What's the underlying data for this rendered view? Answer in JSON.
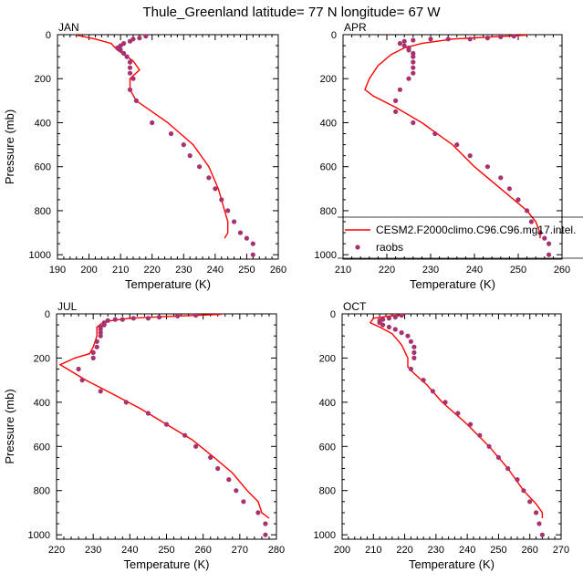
{
  "title": "Thule_Greenland  latitude= 77 N longitude= 67 W",
  "chart_data": [
    {
      "type": "line",
      "panel": "JAN",
      "xlabel": "Temperature (K)",
      "ylabel": "Pressure (mb)",
      "xlim": [
        190,
        260
      ],
      "ylim": [
        1020,
        0
      ],
      "xticks": [
        190,
        200,
        210,
        220,
        230,
        240,
        250,
        260
      ],
      "yticks": [
        0,
        200,
        400,
        600,
        800,
        1000
      ],
      "series": [
        {
          "name": "CESM2.F2000climo.C96.C96.mg17.intel.",
          "kind": "line",
          "color": "#ff0000",
          "points": [
            [
              196,
              2
            ],
            [
              202,
              20
            ],
            [
              207,
              40
            ],
            [
              208,
              55
            ],
            [
              209,
              70
            ],
            [
              211,
              90
            ],
            [
              214,
              120
            ],
            [
              216,
              160
            ],
            [
              213,
              200
            ],
            [
              213,
              250
            ],
            [
              215,
              300
            ],
            [
              225,
              400
            ],
            [
              233,
              500
            ],
            [
              238,
              600
            ],
            [
              241,
              700
            ],
            [
              243,
              800
            ],
            [
              244,
              850
            ],
            [
              244,
              900
            ],
            [
              243,
              925
            ]
          ]
        },
        {
          "name": "raobs",
          "kind": "scatter",
          "color": "#a8326e",
          "points": [
            [
              218,
              7
            ],
            [
              216,
              15
            ],
            [
              214,
              20
            ],
            [
              213,
              30
            ],
            [
              211,
              40
            ],
            [
              210,
              50
            ],
            [
              209,
              60
            ],
            [
              210,
              70
            ],
            [
              211,
              85
            ],
            [
              212,
              100
            ],
            [
              213,
              125
            ],
            [
              213,
              150
            ],
            [
              213,
              175
            ],
            [
              214,
              200
            ],
            [
              213,
              250
            ],
            [
              215,
              300
            ],
            [
              220,
              400
            ],
            [
              226,
              450
            ],
            [
              230,
              500
            ],
            [
              232,
              550
            ],
            [
              235,
              600
            ],
            [
              238,
              650
            ],
            [
              240,
              700
            ],
            [
              242,
              750
            ],
            [
              244,
              800
            ],
            [
              246,
              850
            ],
            [
              248,
              900
            ],
            [
              250,
              925
            ],
            [
              252,
              950
            ],
            [
              252,
              1000
            ]
          ]
        }
      ]
    },
    {
      "type": "line",
      "panel": "APR",
      "xlabel": "Temperature (K)",
      "ylabel": "",
      "xlim": [
        210,
        260
      ],
      "ylim": [
        1020,
        0
      ],
      "xticks": [
        210,
        220,
        230,
        240,
        250,
        260
      ],
      "yticks": [
        0,
        200,
        400,
        600,
        800,
        1000
      ],
      "series": [
        {
          "name": "CESM2.F2000climo.C96.C96.mg17.intel.",
          "kind": "line",
          "color": "#ff0000",
          "points": [
            [
              252,
              2
            ],
            [
              244,
              10
            ],
            [
              235,
              20
            ],
            [
              228,
              40
            ],
            [
              224,
              60
            ],
            [
              221,
              90
            ],
            [
              218,
              140
            ],
            [
              216,
              200
            ],
            [
              215,
              250
            ],
            [
              217,
              280
            ],
            [
              222,
              330
            ],
            [
              228,
              400
            ],
            [
              235,
              500
            ],
            [
              240,
              600
            ],
            [
              246,
              700
            ],
            [
              252,
              800
            ],
            [
              254,
              850
            ],
            [
              255,
              900
            ],
            [
              255,
              925
            ]
          ]
        },
        {
          "name": "raobs",
          "kind": "scatter",
          "color": "#a8326e",
          "points": [
            [
              249,
              7
            ],
            [
              246,
              10
            ],
            [
              243,
              15
            ],
            [
              239,
              20
            ],
            [
              234,
              20
            ],
            [
              230,
              20
            ],
            [
              226,
              25
            ],
            [
              224,
              30
            ],
            [
              223,
              40
            ],
            [
              224,
              50
            ],
            [
              225,
              60
            ],
            [
              225,
              70
            ],
            [
              226,
              85
            ],
            [
              226,
              100
            ],
            [
              226,
              125
            ],
            [
              226,
              150
            ],
            [
              226,
              175
            ],
            [
              225,
              200
            ],
            [
              223,
              250
            ],
            [
              222,
              300
            ],
            [
              222,
              350
            ],
            [
              226,
              400
            ],
            [
              231,
              450
            ],
            [
              236,
              500
            ],
            [
              239,
              550
            ],
            [
              243,
              600
            ],
            [
              246,
              650
            ],
            [
              248,
              700
            ],
            [
              250,
              750
            ],
            [
              252,
              800
            ],
            [
              253,
              850
            ],
            [
              255,
              900
            ],
            [
              256,
              925
            ],
            [
              257,
              950
            ],
            [
              257,
              1000
            ]
          ]
        }
      ],
      "legend": "right-middle"
    },
    {
      "type": "line",
      "panel": "JUL",
      "xlabel": "Temperature (K)",
      "ylabel": "Pressure (mb)",
      "xlim": [
        220,
        280
      ],
      "ylim": [
        1020,
        0
      ],
      "xticks": [
        220,
        230,
        240,
        250,
        260,
        270,
        280
      ],
      "yticks": [
        0,
        200,
        400,
        600,
        800,
        1000
      ],
      "series": [
        {
          "name": "CESM2.F2000climo.C96.C96.mg17.intel.",
          "kind": "line",
          "color": "#ff0000",
          "points": [
            [
              265,
              2
            ],
            [
              253,
              10
            ],
            [
              240,
              20
            ],
            [
              233,
              35
            ],
            [
              231,
              60
            ],
            [
              231,
              100
            ],
            [
              230,
              150
            ],
            [
              229,
              180
            ],
            [
              225,
              200
            ],
            [
              221,
              230
            ],
            [
              224,
              260
            ],
            [
              228,
              300
            ],
            [
              235,
              360
            ],
            [
              243,
              430
            ],
            [
              250,
              500
            ],
            [
              257,
              570
            ],
            [
              263,
              650
            ],
            [
              268,
              720
            ],
            [
              272,
              800
            ],
            [
              275,
              850
            ],
            [
              276,
              900
            ],
            [
              278,
              925
            ]
          ]
        },
        {
          "name": "raobs",
          "kind": "scatter",
          "color": "#a8326e",
          "points": [
            [
              258,
              7
            ],
            [
              253,
              10
            ],
            [
              248,
              15
            ],
            [
              245,
              20
            ],
            [
              241,
              20
            ],
            [
              238,
              25
            ],
            [
              236,
              25
            ],
            [
              234,
              30
            ],
            [
              233,
              40
            ],
            [
              233,
              50
            ],
            [
              232,
              60
            ],
            [
              232,
              70
            ],
            [
              232,
              85
            ],
            [
              232,
              100
            ],
            [
              231,
              125
            ],
            [
              231,
              150
            ],
            [
              230,
              175
            ],
            [
              230,
              200
            ],
            [
              226,
              250
            ],
            [
              227,
              300
            ],
            [
              232,
              350
            ],
            [
              239,
              400
            ],
            [
              245,
              450
            ],
            [
              250,
              500
            ],
            [
              255,
              550
            ],
            [
              258,
              600
            ],
            [
              262,
              650
            ],
            [
              264,
              700
            ],
            [
              267,
              750
            ],
            [
              269,
              800
            ],
            [
              271,
              850
            ],
            [
              275,
              900
            ],
            [
              277,
              950
            ],
            [
              277,
              1000
            ]
          ]
        }
      ]
    },
    {
      "type": "line",
      "panel": "OCT",
      "xlabel": "Temperature (K)",
      "ylabel": "",
      "xlim": [
        200,
        270
      ],
      "ylim": [
        1020,
        0
      ],
      "xticks": [
        200,
        210,
        220,
        230,
        240,
        250,
        260,
        270
      ],
      "yticks": [
        0,
        200,
        400,
        600,
        800,
        1000
      ],
      "series": [
        {
          "name": "CESM2.F2000climo.C96.C96.mg17.intel.",
          "kind": "line",
          "color": "#ff0000",
          "points": [
            [
              220,
              2
            ],
            [
              215,
              10
            ],
            [
              210,
              20
            ],
            [
              209,
              40
            ],
            [
              212,
              60
            ],
            [
              216,
              90
            ],
            [
              219,
              140
            ],
            [
              221,
              200
            ],
            [
              221,
              240
            ],
            [
              223,
              270
            ],
            [
              227,
              320
            ],
            [
              232,
              400
            ],
            [
              240,
              500
            ],
            [
              247,
              600
            ],
            [
              253,
              700
            ],
            [
              258,
              800
            ],
            [
              262,
              860
            ],
            [
              264,
              900
            ],
            [
              264,
              925
            ]
          ]
        },
        {
          "name": "raobs",
          "kind": "scatter",
          "color": "#a8326e",
          "points": [
            [
              219,
              7
            ],
            [
              217,
              15
            ],
            [
              215,
              20
            ],
            [
              213,
              25
            ],
            [
              212,
              30
            ],
            [
              212,
              40
            ],
            [
              213,
              50
            ],
            [
              215,
              60
            ],
            [
              217,
              70
            ],
            [
              219,
              85
            ],
            [
              221,
              100
            ],
            [
              222,
              125
            ],
            [
              223,
              150
            ],
            [
              223,
              175
            ],
            [
              223,
              200
            ],
            [
              222,
              250
            ],
            [
              226,
              300
            ],
            [
              229,
              350
            ],
            [
              233,
              400
            ],
            [
              237,
              450
            ],
            [
              241,
              500
            ],
            [
              244,
              550
            ],
            [
              247,
              600
            ],
            [
              250,
              650
            ],
            [
              253,
              700
            ],
            [
              256,
              750
            ],
            [
              258,
              800
            ],
            [
              260,
              850
            ],
            [
              262,
              900
            ],
            [
              263,
              950
            ],
            [
              264,
              1000
            ]
          ]
        }
      ]
    }
  ]
}
